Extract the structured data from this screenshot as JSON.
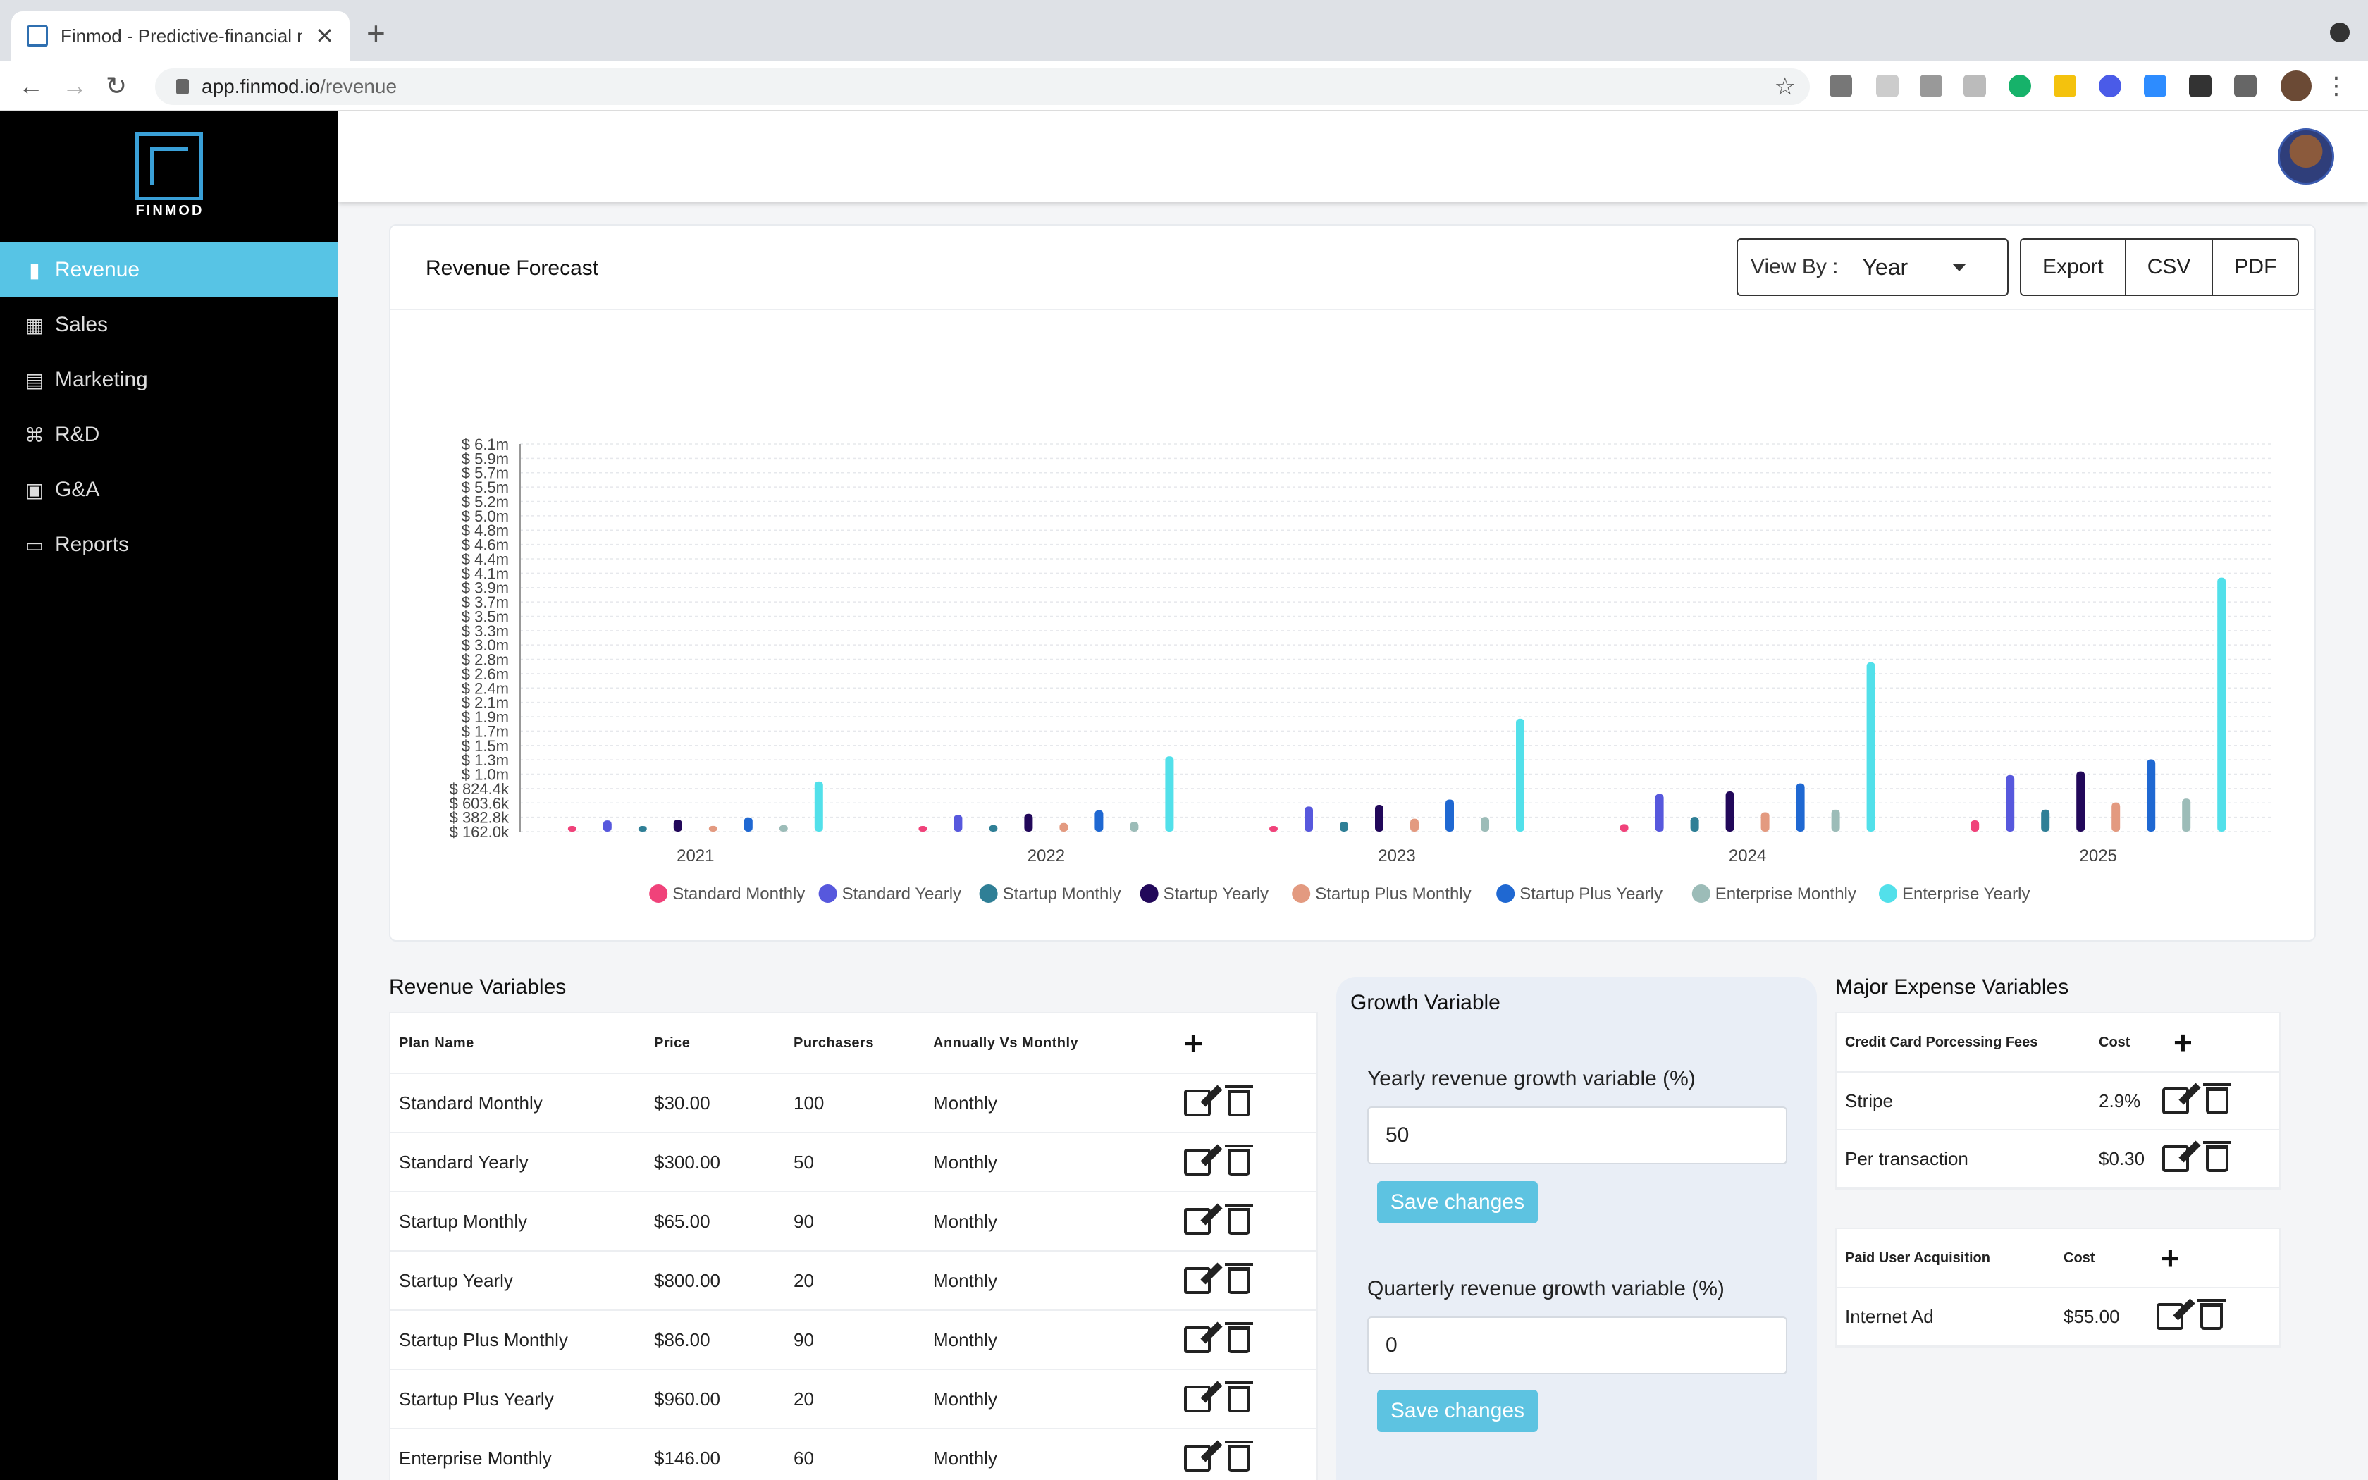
{
  "browser": {
    "tab_title": "Finmod - Predictive-financial m",
    "url_host": "app.finmod.io",
    "url_path": "/revenue"
  },
  "sidebar": {
    "logo_text": "FINMOD",
    "items": [
      {
        "label": "Revenue",
        "icon": "bar-chart-icon"
      },
      {
        "label": "Sales",
        "icon": "sales-chart-icon"
      },
      {
        "label": "Marketing",
        "icon": "store-icon"
      },
      {
        "label": "R&D",
        "icon": "command-icon"
      },
      {
        "label": "G&A",
        "icon": "clipboard-icon"
      },
      {
        "label": "Reports",
        "icon": "folder-icon"
      }
    ]
  },
  "forecast": {
    "title": "Revenue Forecast",
    "view_by_label": "View By :",
    "view_by_value": "Year",
    "buttons": [
      "Export",
      "CSV",
      "PDF"
    ]
  },
  "chart_data": {
    "type": "bar",
    "categories": [
      "2021",
      "2022",
      "2023",
      "2024",
      "2025"
    ],
    "y_ticks": [
      "$ 162.0k",
      "$ 382.8k",
      "$ 603.6k",
      "$ 824.4k",
      "$ 1.0m",
      "$ 1.3m",
      "$ 1.5m",
      "$ 1.7m",
      "$ 1.9m",
      "$ 2.1m",
      "$ 2.4m",
      "$ 2.6m",
      "$ 2.8m",
      "$ 3.0m",
      "$ 3.3m",
      "$ 3.5m",
      "$ 3.7m",
      "$ 3.9m",
      "$ 4.1m",
      "$ 4.4m",
      "$ 4.6m",
      "$ 4.8m",
      "$ 5.0m",
      "$ 5.2m",
      "$ 5.5m",
      "$ 5.7m",
      "$ 5.9m",
      "$ 6.1m"
    ],
    "ylim": [
      0,
      6100000
    ],
    "grid": true,
    "legend_position": "bottom",
    "series": [
      {
        "name": "Standard Monthly",
        "color": "#f0427a",
        "values": [
          36000,
          54000,
          81000,
          121500,
          182250
        ]
      },
      {
        "name": "Standard Yearly",
        "color": "#5758dd",
        "values": [
          180000,
          270000,
          405000,
          607500,
          911250
        ]
      },
      {
        "name": "Startup Monthly",
        "color": "#2f7f96",
        "values": [
          70200,
          105300,
          157950,
          236925,
          355388
        ]
      },
      {
        "name": "Startup Yearly",
        "color": "#22085a",
        "values": [
          192000,
          288000,
          432000,
          648000,
          972000
        ]
      },
      {
        "name": "Startup Plus Monthly",
        "color": "#e39a80",
        "values": [
          92880,
          139320,
          208980,
          313470,
          470205
        ]
      },
      {
        "name": "Startup Plus Yearly",
        "color": "#1f68d2",
        "values": [
          230400,
          345600,
          518400,
          777600,
          1166400
        ]
      },
      {
        "name": "Enterprise Monthly",
        "color": "#9cbcb8",
        "values": [
          105120,
          157680,
          236520,
          354780,
          532170
        ]
      },
      {
        "name": "Enterprise Yearly",
        "color": "#52e0ea",
        "values": [
          810000,
          1215000,
          1822500,
          2733750,
          4100625
        ]
      }
    ]
  },
  "revenue_variables": {
    "title": "Revenue Variables",
    "headers": [
      "Plan Name",
      "Price",
      "Purchasers",
      "Annually Vs Monthly"
    ],
    "rows": [
      [
        "Standard Monthly",
        "$30.00",
        "100",
        "Monthly"
      ],
      [
        "Standard Yearly",
        "$300.00",
        "50",
        "Monthly"
      ],
      [
        "Startup Monthly",
        "$65.00",
        "90",
        "Monthly"
      ],
      [
        "Startup Yearly",
        "$800.00",
        "20",
        "Monthly"
      ],
      [
        "Startup Plus Monthly",
        "$86.00",
        "90",
        "Monthly"
      ],
      [
        "Startup Plus Yearly",
        "$960.00",
        "20",
        "Monthly"
      ],
      [
        "Enterprise Monthly",
        "$146.00",
        "60",
        "Monthly"
      ]
    ]
  },
  "growth": {
    "title": "Growth Variable",
    "yearly_label": "Yearly revenue growth variable (%)",
    "yearly_value": "50",
    "quarterly_label": "Quarterly revenue growth variable (%)",
    "quarterly_value": "0",
    "save_label": "Save changes"
  },
  "expenses": {
    "title": "Major Expense Variables",
    "cc": {
      "headers": [
        "Credit Card Porcessing Fees",
        "Cost"
      ],
      "rows": [
        [
          "Stripe",
          "2.9%"
        ],
        [
          "Per transaction",
          "$0.30"
        ]
      ]
    },
    "acq": {
      "headers": [
        "Paid User Acquisition",
        "Cost"
      ],
      "rows": [
        [
          "Internet Ad",
          "$55.00"
        ]
      ]
    }
  }
}
